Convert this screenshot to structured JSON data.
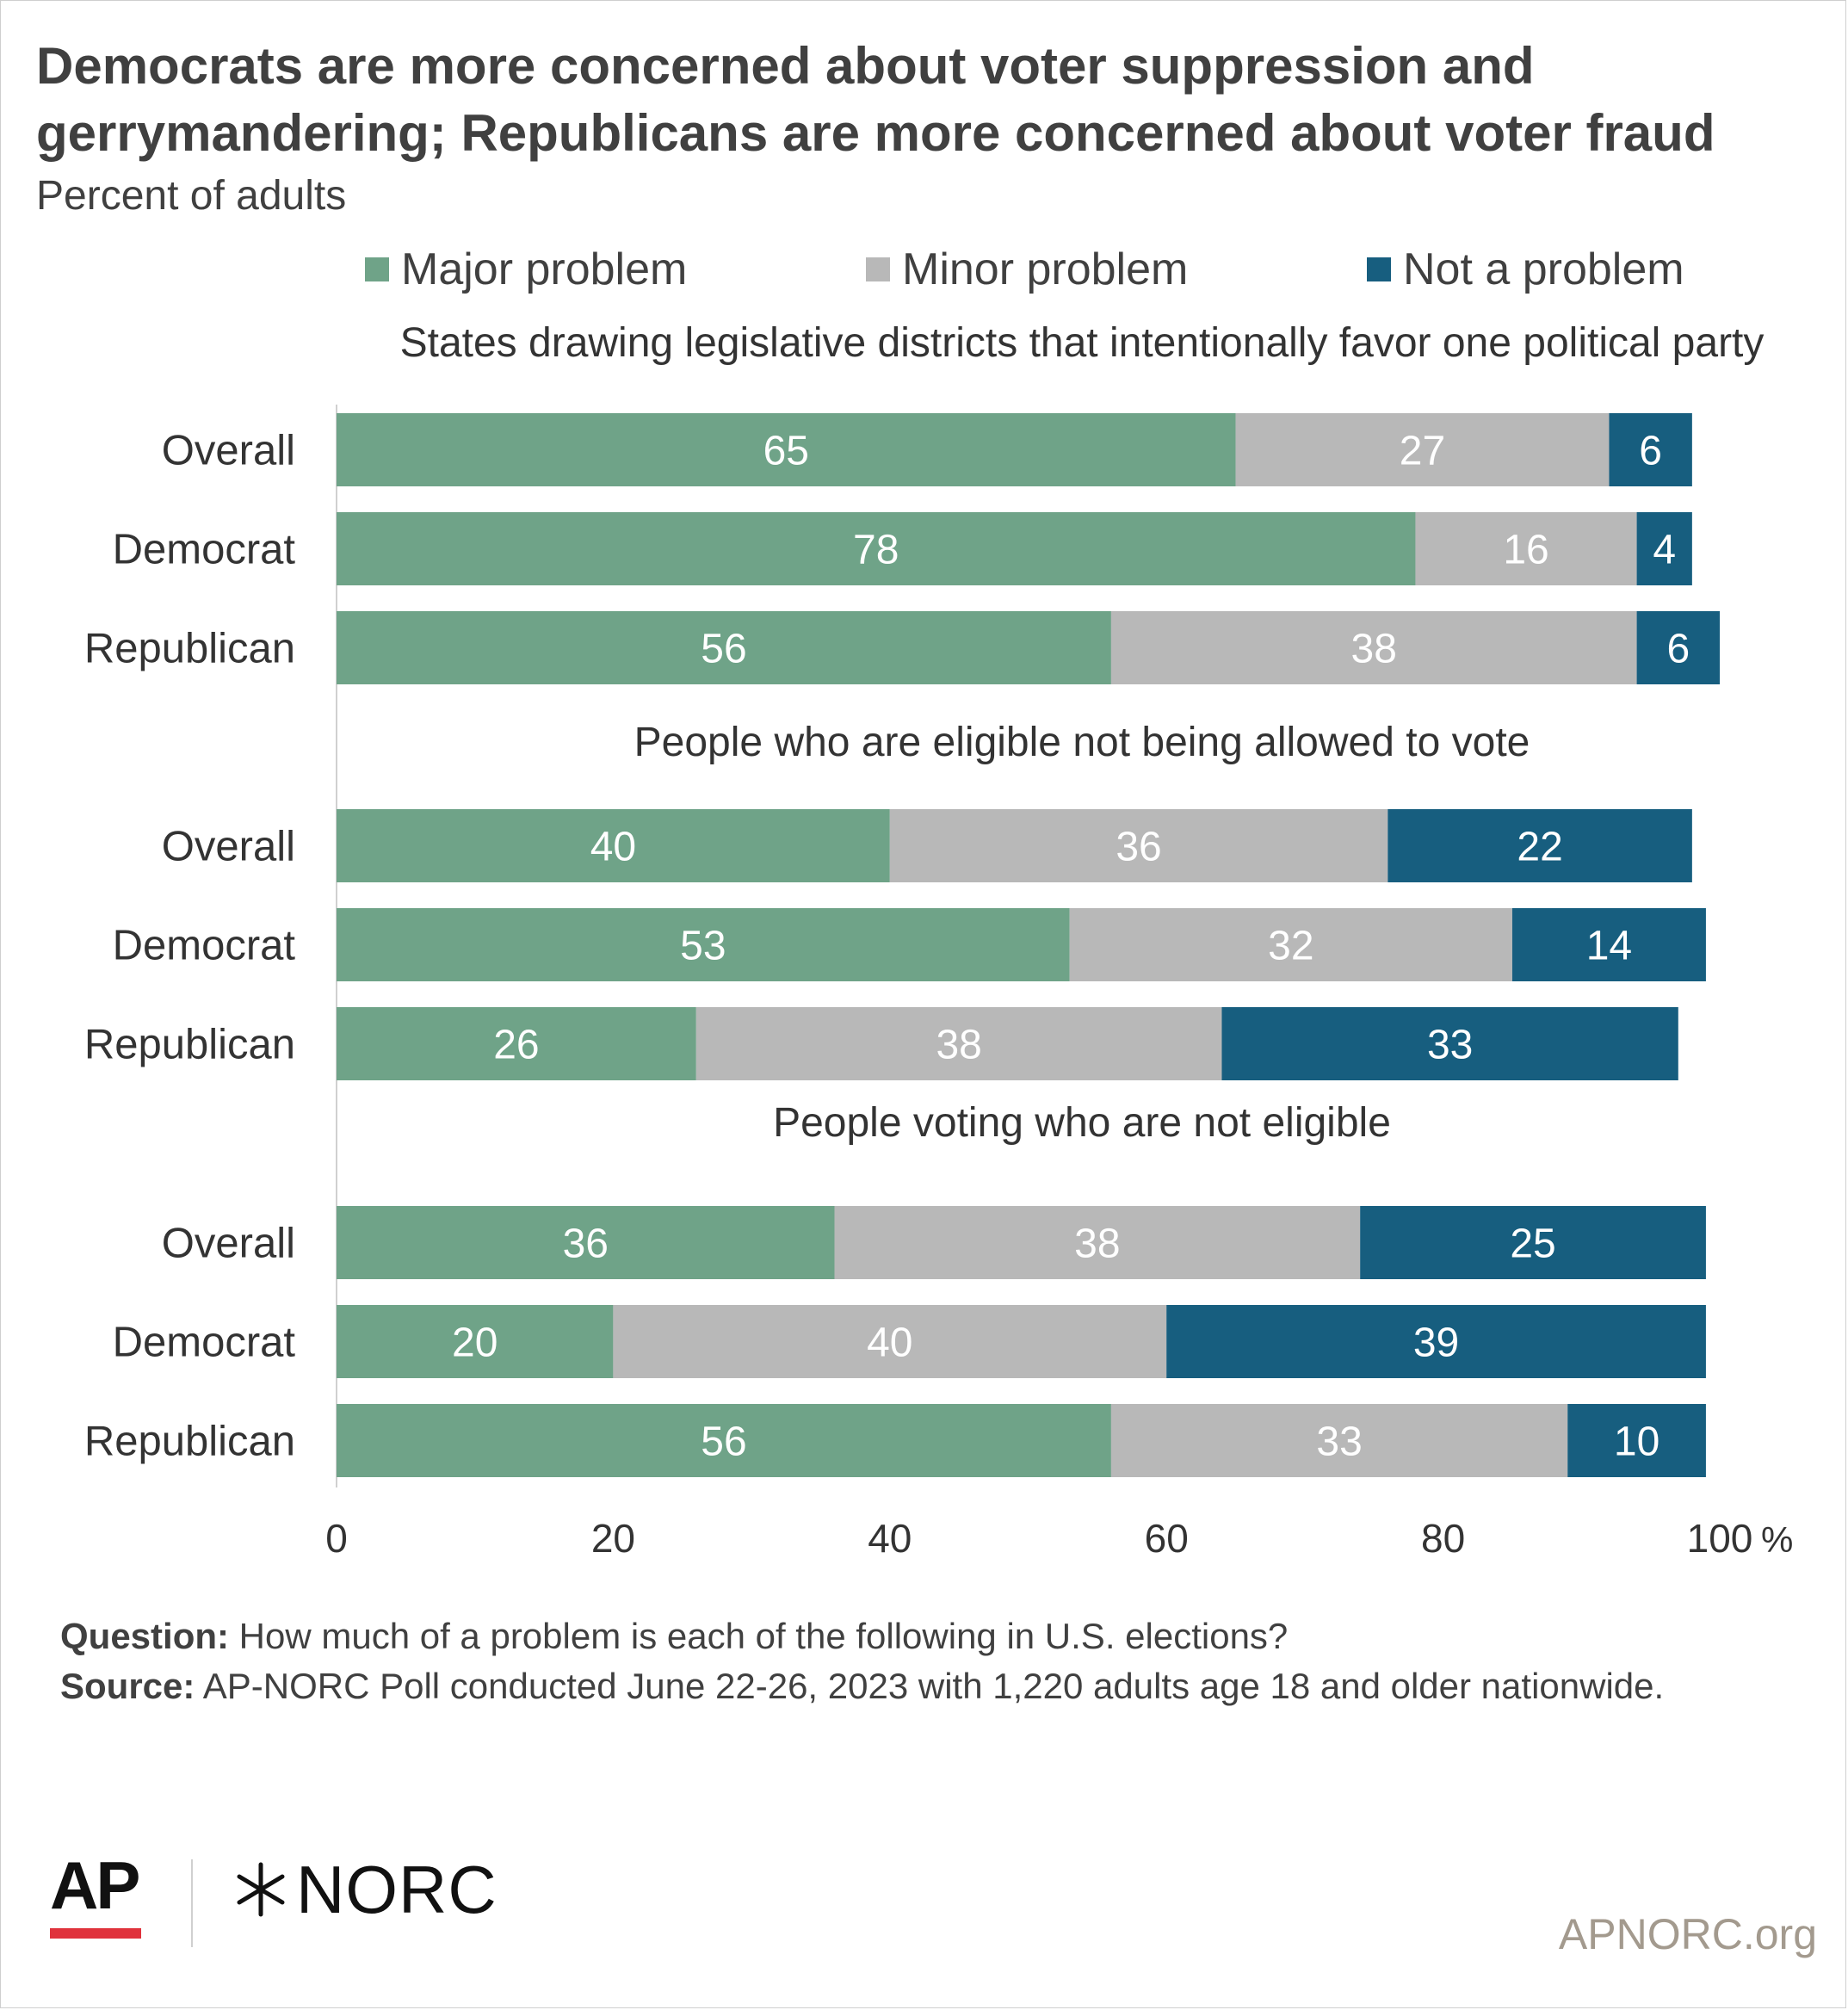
{
  "title": "Democrats are more concerned about voter suppression and gerrymandering; Republicans are more concerned about voter fraud",
  "subtitle": "Percent of adults",
  "legend": [
    {
      "label": "Major problem",
      "color": "#6fa388"
    },
    {
      "label": "Minor problem",
      "color": "#b8b8b8"
    },
    {
      "label": "Not a problem",
      "color": "#175e7f"
    }
  ],
  "chart_data": {
    "type": "bar",
    "orientation": "horizontal",
    "stacked": true,
    "series_names": [
      "Major problem",
      "Minor problem",
      "Not a problem"
    ],
    "colors": [
      "#6fa388",
      "#b8b8b8",
      "#175e7f"
    ],
    "xlim": [
      0,
      100
    ],
    "xticks": [
      0,
      20,
      40,
      60,
      80,
      100
    ],
    "x_unit": "%",
    "legend_position": "top",
    "grid": false,
    "groups": [
      {
        "title": "States drawing legislative districts that intentionally favor one political party",
        "rows": [
          {
            "label": "Overall",
            "values": [
              65,
              27,
              6
            ]
          },
          {
            "label": "Democrat",
            "values": [
              78,
              16,
              4
            ]
          },
          {
            "label": "Republican",
            "values": [
              56,
              38,
              6
            ]
          }
        ]
      },
      {
        "title": "People who are eligible not being allowed to vote",
        "rows": [
          {
            "label": "Overall",
            "values": [
              40,
              36,
              22
            ]
          },
          {
            "label": "Democrat",
            "values": [
              53,
              32,
              14
            ]
          },
          {
            "label": "Republican",
            "values": [
              26,
              38,
              33
            ]
          }
        ]
      },
      {
        "title": "People voting who are not eligible",
        "rows": [
          {
            "label": "Overall",
            "values": [
              36,
              38,
              25
            ]
          },
          {
            "label": "Democrat",
            "values": [
              20,
              40,
              39
            ]
          },
          {
            "label": "Republican",
            "values": [
              56,
              33,
              10
            ]
          }
        ]
      }
    ]
  },
  "footer": {
    "question_label": "Question:",
    "question_text": " How much of a problem is each of the following in U.S. elections?",
    "source_label": "Source:",
    "source_text": " AP-NORC Poll conducted June 22-26, 2023 with 1,220 adults age 18 and older nationwide."
  },
  "logos": {
    "ap": "AP",
    "norc": "NORC",
    "norc_mark_icon": "norc-star-icon"
  },
  "site": "APNORC.org"
}
